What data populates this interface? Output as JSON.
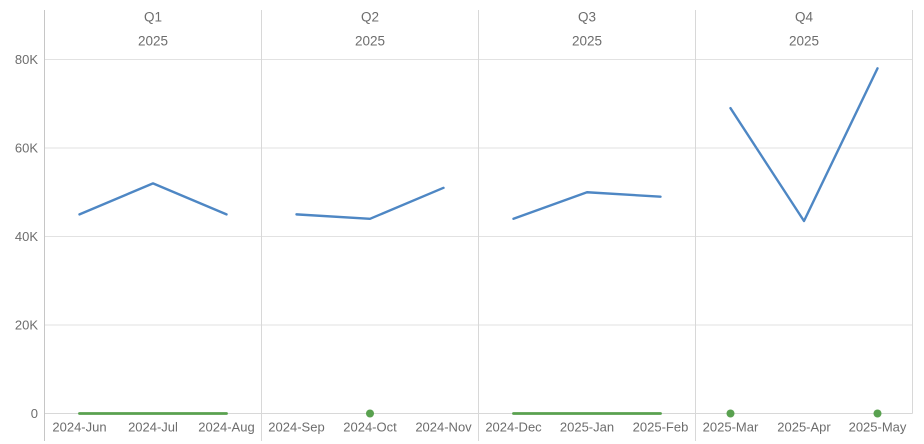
{
  "chart_data": {
    "type": "line",
    "layout": "small-multiples: 4 quarter facets sharing one y-axis, gridlines on, no legend",
    "colors": {
      "primary_line": "#4e87c4",
      "baseline_series": "#59a14f",
      "grid_line": "#e2e2e2",
      "panel_separator": "#d8d8d8",
      "axis_line": "#c6c6c6",
      "text": "#6d6d6d"
    },
    "y_axis": {
      "ticks": [
        {
          "label": "80K",
          "value": 80000
        },
        {
          "label": "60K",
          "value": 60000
        },
        {
          "label": "40K",
          "value": 40000
        },
        {
          "label": "20K",
          "value": 20000
        },
        {
          "label": "0",
          "value": 0
        }
      ],
      "lim": [
        0,
        80000
      ]
    },
    "facets": [
      {
        "header": {
          "quarter": "Q1",
          "year": "2025"
        },
        "categories": [
          "2024-Jun",
          "2024-Jul",
          "2024-Aug"
        ],
        "series": {
          "primary": [
            45000,
            52000,
            45000
          ],
          "baseline": [
            0,
            0,
            0
          ]
        }
      },
      {
        "header": {
          "quarter": "Q2",
          "year": "2025"
        },
        "categories": [
          "2024-Sep",
          "2024-Oct",
          "2024-Nov"
        ],
        "series": {
          "primary": [
            45000,
            44000,
            51000
          ],
          "baseline": [
            null,
            0,
            null
          ]
        }
      },
      {
        "header": {
          "quarter": "Q3",
          "year": "2025"
        },
        "categories": [
          "2024-Dec",
          "2025-Jan",
          "2025-Feb"
        ],
        "series": {
          "primary": [
            44000,
            50000,
            49000
          ],
          "baseline": [
            0,
            0,
            0
          ]
        }
      },
      {
        "header": {
          "quarter": "Q4",
          "year": "2025"
        },
        "categories": [
          "2025-Mar",
          "2025-Apr",
          "2025-May"
        ],
        "series": {
          "primary": [
            69000,
            43500,
            78000
          ],
          "baseline": [
            0,
            null,
            0
          ]
        }
      }
    ]
  }
}
